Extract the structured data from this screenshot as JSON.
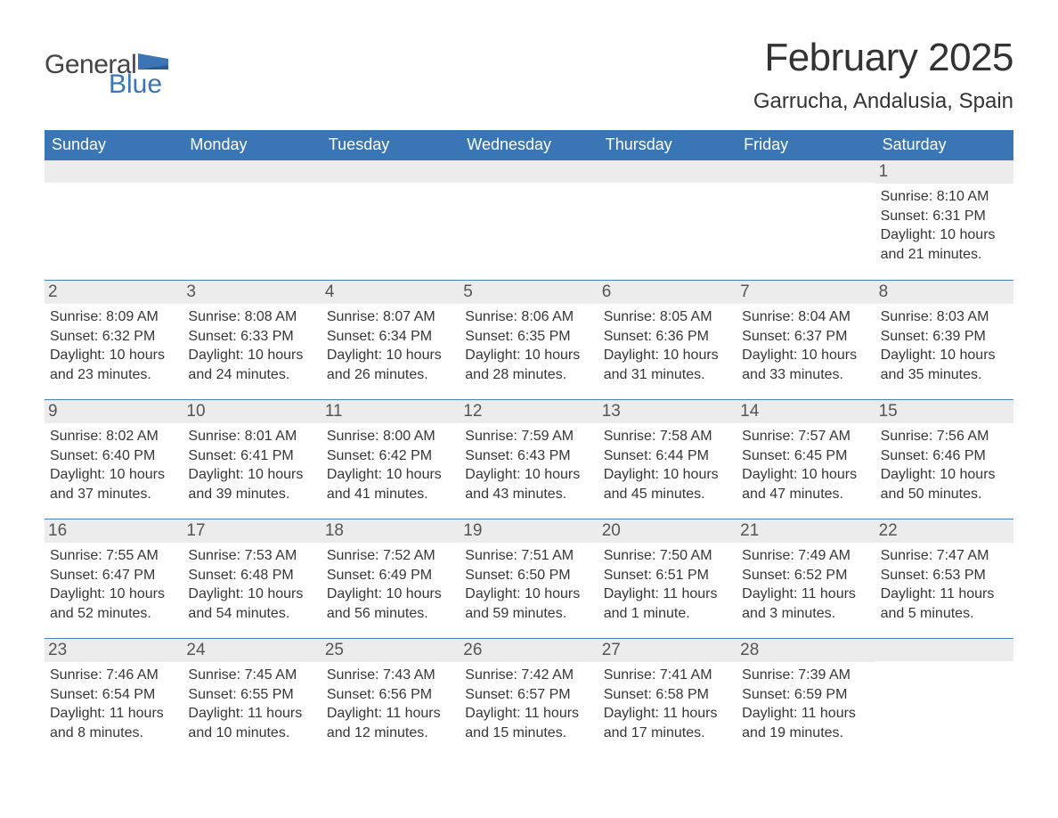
{
  "logo": {
    "text_general": "General",
    "text_blue": "Blue"
  },
  "header": {
    "month": "February 2025",
    "location": "Garrucha, Andalusia, Spain"
  },
  "colors": {
    "header_bg": "#3a76b6",
    "header_text": "#ffffff",
    "daynum_bg": "#ececec",
    "week_border": "#4a80bb",
    "text": "#333333",
    "logo_general": "#444444",
    "logo_blue": "#3a76b6"
  },
  "days_of_week": [
    "Sunday",
    "Monday",
    "Tuesday",
    "Wednesday",
    "Thursday",
    "Friday",
    "Saturday"
  ],
  "weeks": [
    [
      {
        "day": "",
        "lines": []
      },
      {
        "day": "",
        "lines": []
      },
      {
        "day": "",
        "lines": []
      },
      {
        "day": "",
        "lines": []
      },
      {
        "day": "",
        "lines": []
      },
      {
        "day": "",
        "lines": []
      },
      {
        "day": "1",
        "lines": [
          "Sunrise: 8:10 AM",
          "Sunset: 6:31 PM",
          "Daylight: 10 hours and 21 minutes."
        ]
      }
    ],
    [
      {
        "day": "2",
        "lines": [
          "Sunrise: 8:09 AM",
          "Sunset: 6:32 PM",
          "Daylight: 10 hours and 23 minutes."
        ]
      },
      {
        "day": "3",
        "lines": [
          "Sunrise: 8:08 AM",
          "Sunset: 6:33 PM",
          "Daylight: 10 hours and 24 minutes."
        ]
      },
      {
        "day": "4",
        "lines": [
          "Sunrise: 8:07 AM",
          "Sunset: 6:34 PM",
          "Daylight: 10 hours and 26 minutes."
        ]
      },
      {
        "day": "5",
        "lines": [
          "Sunrise: 8:06 AM",
          "Sunset: 6:35 PM",
          "Daylight: 10 hours and 28 minutes."
        ]
      },
      {
        "day": "6",
        "lines": [
          "Sunrise: 8:05 AM",
          "Sunset: 6:36 PM",
          "Daylight: 10 hours and 31 minutes."
        ]
      },
      {
        "day": "7",
        "lines": [
          "Sunrise: 8:04 AM",
          "Sunset: 6:37 PM",
          "Daylight: 10 hours and 33 minutes."
        ]
      },
      {
        "day": "8",
        "lines": [
          "Sunrise: 8:03 AM",
          "Sunset: 6:39 PM",
          "Daylight: 10 hours and 35 minutes."
        ]
      }
    ],
    [
      {
        "day": "9",
        "lines": [
          "Sunrise: 8:02 AM",
          "Sunset: 6:40 PM",
          "Daylight: 10 hours and 37 minutes."
        ]
      },
      {
        "day": "10",
        "lines": [
          "Sunrise: 8:01 AM",
          "Sunset: 6:41 PM",
          "Daylight: 10 hours and 39 minutes."
        ]
      },
      {
        "day": "11",
        "lines": [
          "Sunrise: 8:00 AM",
          "Sunset: 6:42 PM",
          "Daylight: 10 hours and 41 minutes."
        ]
      },
      {
        "day": "12",
        "lines": [
          "Sunrise: 7:59 AM",
          "Sunset: 6:43 PM",
          "Daylight: 10 hours and 43 minutes."
        ]
      },
      {
        "day": "13",
        "lines": [
          "Sunrise: 7:58 AM",
          "Sunset: 6:44 PM",
          "Daylight: 10 hours and 45 minutes."
        ]
      },
      {
        "day": "14",
        "lines": [
          "Sunrise: 7:57 AM",
          "Sunset: 6:45 PM",
          "Daylight: 10 hours and 47 minutes."
        ]
      },
      {
        "day": "15",
        "lines": [
          "Sunrise: 7:56 AM",
          "Sunset: 6:46 PM",
          "Daylight: 10 hours and 50 minutes."
        ]
      }
    ],
    [
      {
        "day": "16",
        "lines": [
          "Sunrise: 7:55 AM",
          "Sunset: 6:47 PM",
          "Daylight: 10 hours and 52 minutes."
        ]
      },
      {
        "day": "17",
        "lines": [
          "Sunrise: 7:53 AM",
          "Sunset: 6:48 PM",
          "Daylight: 10 hours and 54 minutes."
        ]
      },
      {
        "day": "18",
        "lines": [
          "Sunrise: 7:52 AM",
          "Sunset: 6:49 PM",
          "Daylight: 10 hours and 56 minutes."
        ]
      },
      {
        "day": "19",
        "lines": [
          "Sunrise: 7:51 AM",
          "Sunset: 6:50 PM",
          "Daylight: 10 hours and 59 minutes."
        ]
      },
      {
        "day": "20",
        "lines": [
          "Sunrise: 7:50 AM",
          "Sunset: 6:51 PM",
          "Daylight: 11 hours and 1 minute."
        ]
      },
      {
        "day": "21",
        "lines": [
          "Sunrise: 7:49 AM",
          "Sunset: 6:52 PM",
          "Daylight: 11 hours and 3 minutes."
        ]
      },
      {
        "day": "22",
        "lines": [
          "Sunrise: 7:47 AM",
          "Sunset: 6:53 PM",
          "Daylight: 11 hours and 5 minutes."
        ]
      }
    ],
    [
      {
        "day": "23",
        "lines": [
          "Sunrise: 7:46 AM",
          "Sunset: 6:54 PM",
          "Daylight: 11 hours and 8 minutes."
        ]
      },
      {
        "day": "24",
        "lines": [
          "Sunrise: 7:45 AM",
          "Sunset: 6:55 PM",
          "Daylight: 11 hours and 10 minutes."
        ]
      },
      {
        "day": "25",
        "lines": [
          "Sunrise: 7:43 AM",
          "Sunset: 6:56 PM",
          "Daylight: 11 hours and 12 minutes."
        ]
      },
      {
        "day": "26",
        "lines": [
          "Sunrise: 7:42 AM",
          "Sunset: 6:57 PM",
          "Daylight: 11 hours and 15 minutes."
        ]
      },
      {
        "day": "27",
        "lines": [
          "Sunrise: 7:41 AM",
          "Sunset: 6:58 PM",
          "Daylight: 11 hours and 17 minutes."
        ]
      },
      {
        "day": "28",
        "lines": [
          "Sunrise: 7:39 AM",
          "Sunset: 6:59 PM",
          "Daylight: 11 hours and 19 minutes."
        ]
      },
      {
        "day": "",
        "lines": []
      }
    ]
  ]
}
